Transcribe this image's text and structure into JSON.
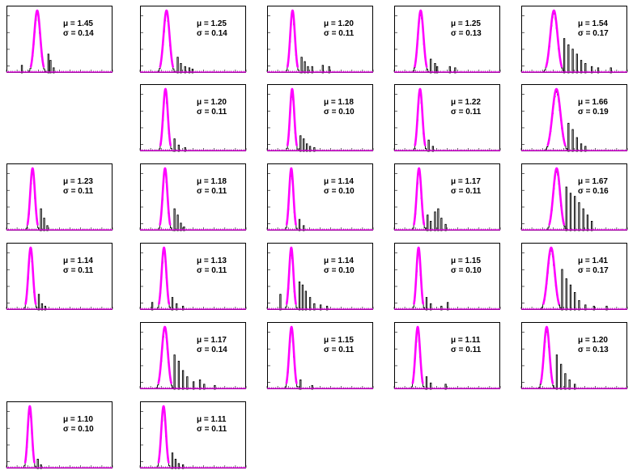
{
  "chart_data": {
    "type": "histogram-grid",
    "colors": {
      "fit": "#ff00ff",
      "histogram": "#000000",
      "frame": "#000000",
      "background": "#ffffff"
    },
    "grid": {
      "rows": 6,
      "cols": 5,
      "x_range": [
        0,
        5
      ]
    },
    "panels": [
      {
        "row": 0,
        "col": 0,
        "mu": 1.45,
        "sigma": 0.14,
        "mu_text": "μ = 1.45",
        "sigma_text": "σ = 0.14",
        "tail": [
          [
            1.95,
            0.3
          ],
          [
            2.05,
            0.2
          ],
          [
            2.2,
            0.08
          ],
          [
            0.7,
            0.12
          ]
        ]
      },
      {
        "row": 0,
        "col": 1,
        "mu": 1.25,
        "sigma": 0.14,
        "mu_text": "μ = 1.25",
        "sigma_text": "σ = 0.14",
        "tail": [
          [
            1.75,
            0.25
          ],
          [
            1.9,
            0.15
          ],
          [
            2.1,
            0.1
          ],
          [
            2.3,
            0.08
          ],
          [
            2.45,
            0.06
          ]
        ]
      },
      {
        "row": 0,
        "col": 2,
        "mu": 1.2,
        "sigma": 0.11,
        "mu_text": "μ = 1.20",
        "sigma_text": "σ = 0.11",
        "tail": [
          [
            1.6,
            0.25
          ],
          [
            1.75,
            0.18
          ],
          [
            1.9,
            0.1
          ],
          [
            2.1,
            0.1
          ],
          [
            2.6,
            0.12
          ],
          [
            2.9,
            0.1
          ]
        ]
      },
      {
        "row": 0,
        "col": 3,
        "mu": 1.25,
        "sigma": 0.13,
        "mu_text": "μ = 1.25",
        "sigma_text": "σ = 0.13",
        "tail": [
          [
            1.7,
            0.22
          ],
          [
            1.9,
            0.15
          ],
          [
            2.0,
            0.1
          ],
          [
            2.6,
            0.1
          ],
          [
            2.85,
            0.08
          ]
        ]
      },
      {
        "row": 0,
        "col": 4,
        "mu": 1.54,
        "sigma": 0.17,
        "mu_text": "μ = 1.54",
        "sigma_text": "σ = 0.17",
        "tail": [
          [
            2.0,
            0.55
          ],
          [
            2.2,
            0.45
          ],
          [
            2.4,
            0.38
          ],
          [
            2.6,
            0.3
          ],
          [
            2.8,
            0.2
          ],
          [
            3.0,
            0.15
          ],
          [
            3.3,
            0.1
          ],
          [
            3.6,
            0.08
          ],
          [
            4.2,
            0.08
          ]
        ]
      },
      {
        "row": 1,
        "col": 1,
        "mu": 1.2,
        "sigma": 0.11,
        "mu_text": "μ = 1.20",
        "sigma_text": "σ = 0.11",
        "tail": [
          [
            1.6,
            0.2
          ],
          [
            1.8,
            0.1
          ],
          [
            2.1,
            0.06
          ]
        ]
      },
      {
        "row": 1,
        "col": 2,
        "mu": 1.18,
        "sigma": 0.1,
        "mu_text": "μ = 1.18",
        "sigma_text": "σ = 0.10",
        "tail": [
          [
            1.55,
            0.25
          ],
          [
            1.7,
            0.2
          ],
          [
            1.85,
            0.12
          ],
          [
            2.0,
            0.08
          ],
          [
            2.2,
            0.06
          ]
        ]
      },
      {
        "row": 1,
        "col": 3,
        "mu": 1.22,
        "sigma": 0.11,
        "mu_text": "μ = 1.22",
        "sigma_text": "σ = 0.11",
        "tail": [
          [
            1.6,
            0.18
          ],
          [
            1.8,
            0.08
          ]
        ]
      },
      {
        "row": 1,
        "col": 4,
        "mu": 1.66,
        "sigma": 0.19,
        "mu_text": "μ = 1.66",
        "sigma_text": "σ = 0.19",
        "tail": [
          [
            2.2,
            0.45
          ],
          [
            2.4,
            0.35
          ],
          [
            2.6,
            0.22
          ],
          [
            2.8,
            0.12
          ],
          [
            3.0,
            0.08
          ]
        ]
      },
      {
        "row": 2,
        "col": 0,
        "mu": 1.23,
        "sigma": 0.11,
        "mu_text": "μ = 1.23",
        "sigma_text": "σ = 0.11",
        "tail": [
          [
            1.6,
            0.35
          ],
          [
            1.75,
            0.2
          ],
          [
            1.9,
            0.08
          ]
        ]
      },
      {
        "row": 2,
        "col": 1,
        "mu": 1.18,
        "sigma": 0.11,
        "mu_text": "μ = 1.18",
        "sigma_text": "σ = 0.11",
        "tail": [
          [
            1.6,
            0.35
          ],
          [
            1.75,
            0.25
          ],
          [
            1.9,
            0.12
          ],
          [
            2.05,
            0.06
          ]
        ]
      },
      {
        "row": 2,
        "col": 2,
        "mu": 1.14,
        "sigma": 0.1,
        "mu_text": "μ = 1.14",
        "sigma_text": "σ = 0.10",
        "tail": [
          [
            1.5,
            0.18
          ],
          [
            1.7,
            0.08
          ]
        ]
      },
      {
        "row": 2,
        "col": 3,
        "mu": 1.17,
        "sigma": 0.11,
        "mu_text": "μ = 1.17",
        "sigma_text": "σ = 0.11",
        "tail": [
          [
            1.55,
            0.25
          ],
          [
            1.7,
            0.15
          ],
          [
            1.9,
            0.3
          ],
          [
            2.05,
            0.35
          ],
          [
            2.2,
            0.2
          ],
          [
            2.4,
            0.1
          ]
        ]
      },
      {
        "row": 2,
        "col": 4,
        "mu": 1.67,
        "sigma": 0.16,
        "mu_text": "μ = 1.67",
        "sigma_text": "σ = 0.16",
        "tail": [
          [
            2.1,
            0.7
          ],
          [
            2.3,
            0.6
          ],
          [
            2.5,
            0.55
          ],
          [
            2.7,
            0.45
          ],
          [
            2.9,
            0.35
          ],
          [
            3.1,
            0.25
          ],
          [
            3.3,
            0.15
          ]
        ]
      },
      {
        "row": 3,
        "col": 0,
        "mu": 1.14,
        "sigma": 0.11,
        "mu_text": "μ = 1.14",
        "sigma_text": "σ = 0.11",
        "tail": [
          [
            1.5,
            0.25
          ],
          [
            1.65,
            0.1
          ],
          [
            1.8,
            0.06
          ]
        ]
      },
      {
        "row": 3,
        "col": 1,
        "mu": 1.13,
        "sigma": 0.11,
        "mu_text": "μ = 1.13",
        "sigma_text": "σ = 0.11",
        "tail": [
          [
            1.5,
            0.2
          ],
          [
            1.7,
            0.1
          ],
          [
            2.0,
            0.06
          ],
          [
            0.55,
            0.12
          ]
        ]
      },
      {
        "row": 3,
        "col": 2,
        "mu": 1.14,
        "sigma": 0.1,
        "mu_text": "μ = 1.14",
        "sigma_text": "σ = 0.10",
        "tail": [
          [
            1.5,
            0.45
          ],
          [
            1.65,
            0.4
          ],
          [
            1.8,
            0.3
          ],
          [
            2.0,
            0.2
          ],
          [
            2.2,
            0.1
          ],
          [
            2.5,
            0.08
          ],
          [
            2.8,
            0.06
          ],
          [
            0.6,
            0.25
          ]
        ]
      },
      {
        "row": 3,
        "col": 3,
        "mu": 1.15,
        "sigma": 0.1,
        "mu_text": "μ = 1.15",
        "sigma_text": "σ = 0.10",
        "tail": [
          [
            1.5,
            0.2
          ],
          [
            1.7,
            0.1
          ],
          [
            2.2,
            0.06
          ],
          [
            2.5,
            0.12
          ]
        ]
      },
      {
        "row": 3,
        "col": 4,
        "mu": 1.41,
        "sigma": 0.17,
        "mu_text": "μ = 1.41",
        "sigma_text": "σ = 0.17",
        "tail": [
          [
            1.9,
            0.65
          ],
          [
            2.1,
            0.5
          ],
          [
            2.3,
            0.4
          ],
          [
            2.5,
            0.28
          ],
          [
            2.7,
            0.15
          ],
          [
            3.0,
            0.08
          ],
          [
            3.4,
            0.06
          ],
          [
            4.0,
            0.06
          ]
        ]
      },
      {
        "row": 4,
        "col": 1,
        "mu": 1.17,
        "sigma": 0.14,
        "mu_text": "μ = 1.17",
        "sigma_text": "σ = 0.14",
        "tail": [
          [
            1.6,
            0.55
          ],
          [
            1.8,
            0.45
          ],
          [
            2.0,
            0.3
          ],
          [
            2.2,
            0.2
          ],
          [
            2.5,
            0.12
          ],
          [
            2.8,
            0.15
          ],
          [
            3.0,
            0.08
          ],
          [
            3.5,
            0.06
          ]
        ]
      },
      {
        "row": 4,
        "col": 2,
        "mu": 1.15,
        "sigma": 0.11,
        "mu_text": "μ = 1.15",
        "sigma_text": "σ = 0.11",
        "tail": [
          [
            1.55,
            0.15
          ],
          [
            2.1,
            0.06
          ]
        ]
      },
      {
        "row": 4,
        "col": 3,
        "mu": 1.11,
        "sigma": 0.11,
        "mu_text": "μ = 1.11",
        "sigma_text": "σ = 0.11",
        "tail": [
          [
            1.5,
            0.2
          ],
          [
            1.7,
            0.1
          ],
          [
            2.4,
            0.08
          ]
        ]
      },
      {
        "row": 4,
        "col": 4,
        "mu": 1.2,
        "sigma": 0.13,
        "mu_text": "μ = 1.20",
        "sigma_text": "σ = 0.13",
        "tail": [
          [
            1.65,
            0.55
          ],
          [
            1.85,
            0.4
          ],
          [
            2.05,
            0.25
          ],
          [
            2.25,
            0.15
          ],
          [
            2.5,
            0.08
          ]
        ]
      },
      {
        "row": 5,
        "col": 0,
        "mu": 1.1,
        "sigma": 0.1,
        "mu_text": "μ = 1.10",
        "sigma_text": "σ = 0.10",
        "tail": [
          [
            1.45,
            0.15
          ],
          [
            1.6,
            0.06
          ]
        ]
      },
      {
        "row": 5,
        "col": 1,
        "mu": 1.11,
        "sigma": 0.11,
        "mu_text": "μ = 1.11",
        "sigma_text": "σ = 0.11",
        "tail": [
          [
            1.5,
            0.25
          ],
          [
            1.65,
            0.15
          ],
          [
            1.8,
            0.08
          ],
          [
            2.0,
            0.06
          ]
        ]
      }
    ]
  }
}
